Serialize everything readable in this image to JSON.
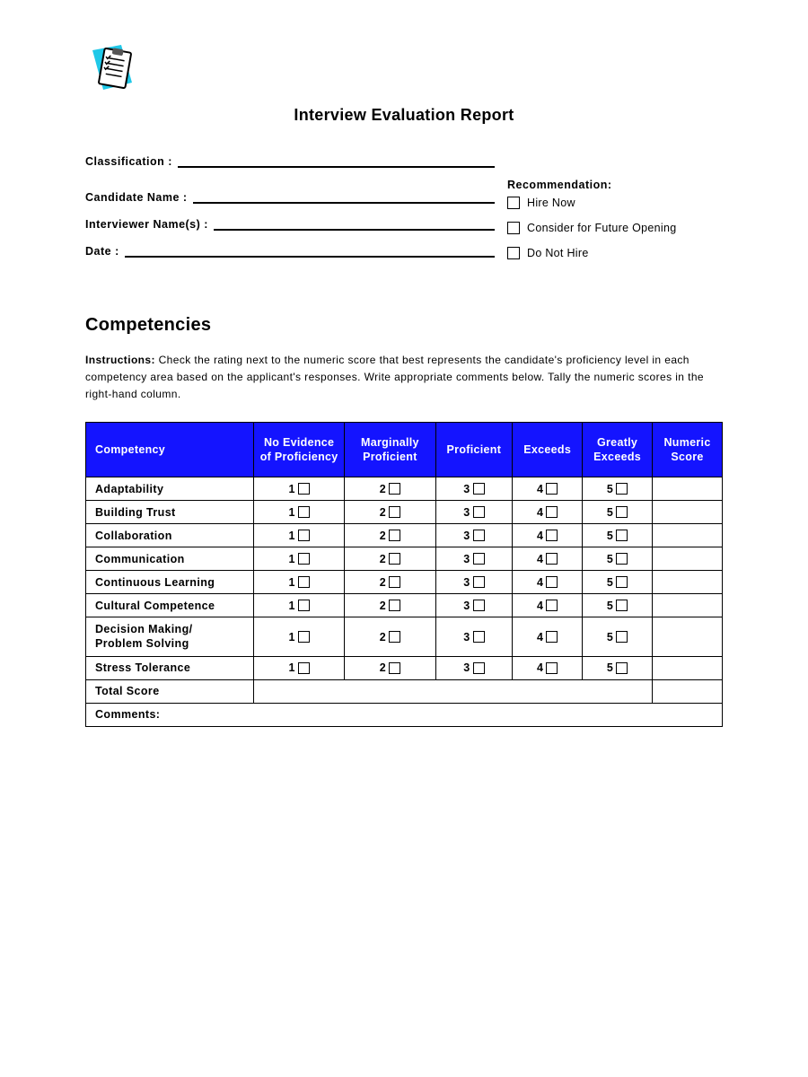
{
  "colors": {
    "header_bg": "#1414ff",
    "header_text": "#ffffff",
    "border": "#000000",
    "page_bg": "#ffffff",
    "logo_accent": "#1fc8e8"
  },
  "title": "Interview Evaluation Report",
  "fields": {
    "classification_label": "Classification :",
    "candidate_label": "Candidate Name :",
    "interviewer_label": "Interviewer Name(s) :",
    "date_label": "Date :"
  },
  "recommendation": {
    "heading": "Recommendation:",
    "options": [
      {
        "label": "Hire Now"
      },
      {
        "label": "Consider for Future Opening"
      },
      {
        "label": "Do Not Hire"
      }
    ]
  },
  "competencies": {
    "heading": "Competencies",
    "instructions_label": "Instructions:",
    "instructions_text": "Check the rating next to the numeric score that best represents the candidate's proficiency level in each competency area based on the applicant's responses. Write appropriate comments below. Tally the numeric scores in the right-hand column.",
    "columns": [
      "Competency",
      "No Evidence of Proficiency",
      "Marginally Proficient",
      "Proficient",
      "Exceeds",
      "Greatly Exceeds",
      "Numeric Score"
    ],
    "rating_values": [
      "1",
      "2",
      "3",
      "4",
      "5"
    ],
    "rows": [
      "Adaptability",
      "Building Trust",
      "Collaboration",
      "Communication",
      "Continuous Learning",
      "Cultural Competence",
      "Decision Making/ Problem Solving",
      "Stress Tolerance"
    ],
    "total_label": "Total Score",
    "comments_label": "Comments:"
  }
}
